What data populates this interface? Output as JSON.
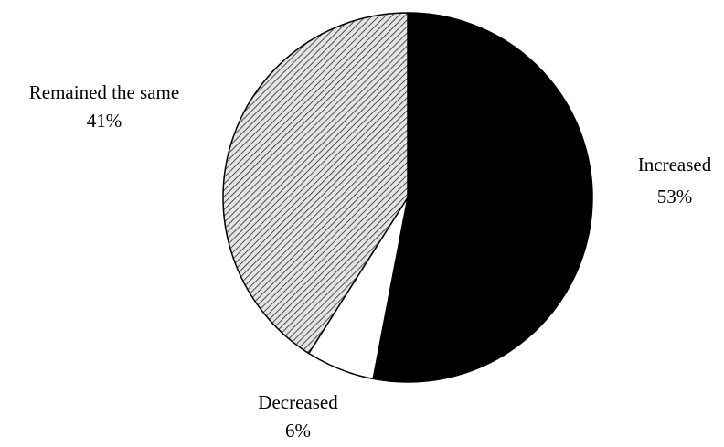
{
  "chart_data": {
    "type": "pie",
    "title": "",
    "slices": [
      {
        "label": "Increased",
        "percent_label": "53%",
        "value": 53,
        "color": "#000000",
        "pattern": "solid"
      },
      {
        "label": "Decreased",
        "percent_label": "6%",
        "value": 6,
        "color": "#ffffff",
        "pattern": "none"
      },
      {
        "label": "Remained the same",
        "percent_label": "41%",
        "value": 41,
        "color": "#cfcfcf",
        "pattern": "diagonal-hatch"
      }
    ],
    "start_angle_deg": 0,
    "direction": "clockwise",
    "legend": "none",
    "labels_outside": true
  }
}
